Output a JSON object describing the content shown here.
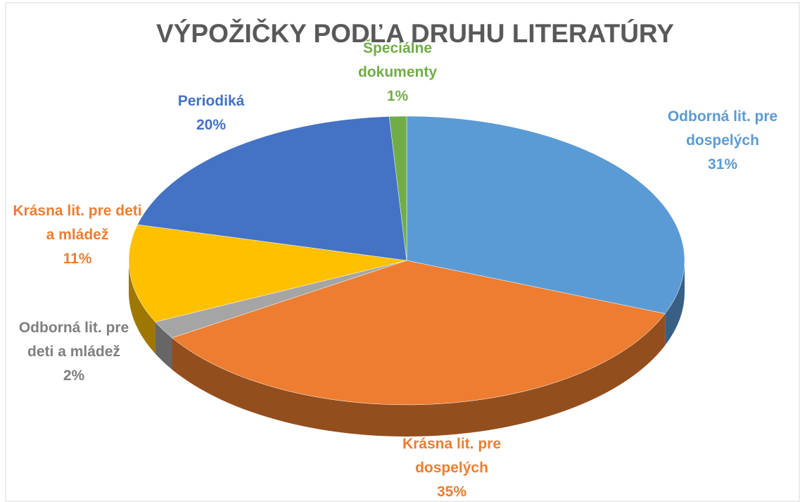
{
  "chart_data": {
    "type": "pie3d",
    "title": "VÝPOŽIČKY PODĽA DRUHU LITERATÚRY",
    "categories": [
      "Odborná lit. pre dospelých",
      "Krásna lit. pre dospelých",
      "Odborná lit. pre deti a mládež",
      "Krásna lit. pre deti a mládež",
      "Periodiká",
      "Špeciálne dokumenty"
    ],
    "values": [
      31,
      35,
      2,
      11,
      20,
      1
    ],
    "value_labels": [
      "31%",
      "35%",
      "2%",
      "11%",
      "20%",
      "1%"
    ],
    "colors": [
      "#5B9BD5",
      "#ED7D31",
      "#A5A5A5",
      "#FFC000",
      "#4472C4",
      "#70AD47"
    ],
    "label_colors": [
      "#5B9BD5",
      "#ED7D31",
      "#7F7F7F",
      "#ED7D31",
      "#4472C4",
      "#70AD47"
    ]
  }
}
